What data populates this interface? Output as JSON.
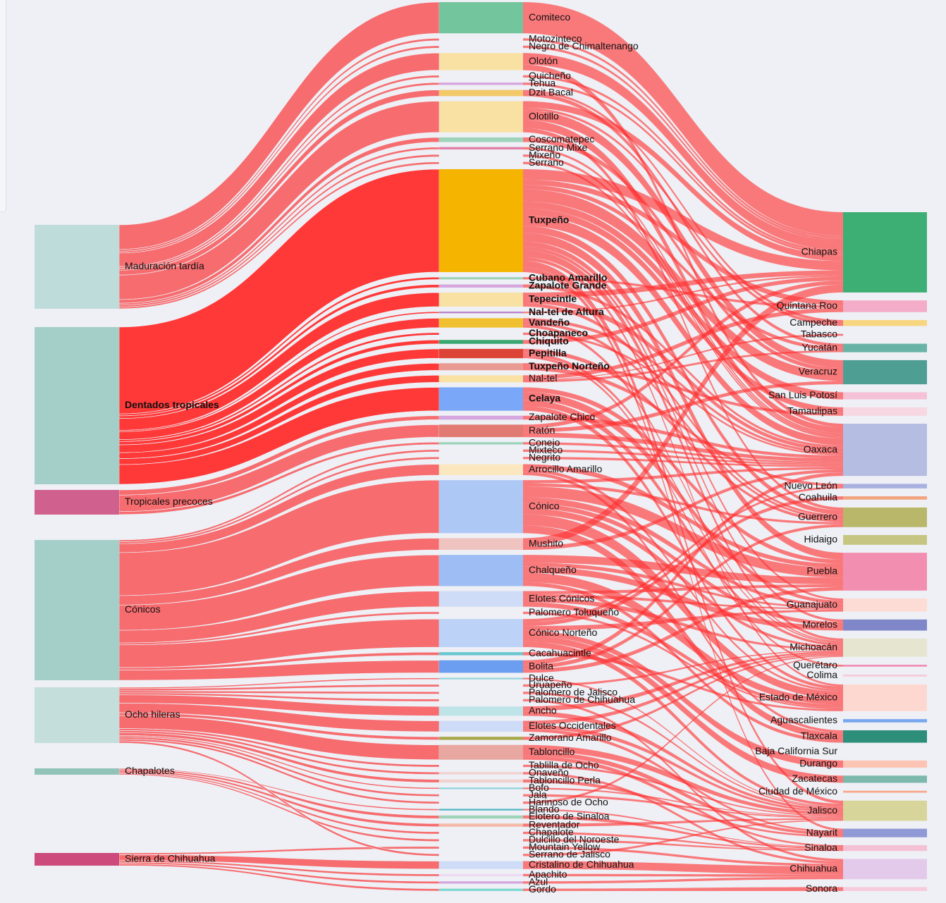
{
  "diagram": {
    "type": "sankey",
    "colors": {
      "group_link": "#f56467",
      "group_link_dentados": "#ff3434",
      "state_link": "#ff3030",
      "background": "#eef0f5"
    },
    "groups": [
      {
        "label": "Maduración tardía",
        "bold": false,
        "color": "#bedcd9"
      },
      {
        "label": "Dentados tropicales",
        "bold": true,
        "color": "#a4cfc9"
      },
      {
        "label": "Tropicales precoces",
        "bold": false,
        "color": "#d0618e"
      },
      {
        "label": "Cónicos",
        "bold": false,
        "color": "#a4cfc9"
      },
      {
        "label": "Ocho hileras",
        "bold": false,
        "color": "#c4dedb"
      },
      {
        "label": "Chapalotes",
        "bold": false,
        "color": "#92c3b9"
      },
      {
        "label": "Sierra de Chihuahua",
        "bold": false,
        "color": "#cc4a7c"
      }
    ],
    "races": [
      {
        "label": "Comiteco",
        "group": 0,
        "bold": false,
        "color": "#73c59d"
      },
      {
        "label": "Motozinteco",
        "group": 0,
        "bold": false,
        "color": "#eef0f5"
      },
      {
        "label": "Negro de Chimaltenango",
        "group": 0,
        "bold": false,
        "color": "#eef0f5"
      },
      {
        "label": "Olotón",
        "group": 0,
        "bold": false,
        "color": "#f8e1a3"
      },
      {
        "label": "Quicheño",
        "group": 0,
        "bold": false,
        "color": "#eef0f5"
      },
      {
        "label": "Tehua",
        "group": 0,
        "bold": false,
        "color": "#d6a6df"
      },
      {
        "label": "Dzit Bacal",
        "group": 0,
        "bold": false,
        "color": "#f3c96a"
      },
      {
        "label": "Olotillo",
        "group": 0,
        "bold": false,
        "color": "#f8e1a3"
      },
      {
        "label": "Coscomatepec",
        "group": 0,
        "bold": false,
        "color": "#9fd4bb"
      },
      {
        "label": "Serrano Mixe",
        "group": 0,
        "bold": false,
        "color": "#e07fa8"
      },
      {
        "label": "Mixeño",
        "group": 0,
        "bold": false,
        "color": "#eef0f5"
      },
      {
        "label": "Serrano",
        "group": 0,
        "bold": false,
        "color": "#eef0f5"
      },
      {
        "label": "Tuxpeño",
        "group": 1,
        "bold": true,
        "color": "#f4b400"
      },
      {
        "label": "Cubano Amarillo",
        "group": 1,
        "bold": true,
        "color": "#9fd4bb"
      },
      {
        "label": "Zapalote Grande",
        "group": 1,
        "bold": true,
        "color": "#d6a6df"
      },
      {
        "label": "Tepecintle",
        "group": 1,
        "bold": true,
        "color": "#f8e1a3"
      },
      {
        "label": "Nal-tel de Altura",
        "group": 1,
        "bold": true,
        "color": "#b77fc8"
      },
      {
        "label": "Vandeño",
        "group": 1,
        "bold": true,
        "color": "#f0c030"
      },
      {
        "label": "Choapaneco",
        "group": 1,
        "bold": true,
        "color": "#eef0f5"
      },
      {
        "label": "Chiquito",
        "group": 1,
        "bold": true,
        "color": "#3aa870"
      },
      {
        "label": "Pepitilla",
        "group": 1,
        "bold": true,
        "color": "#db4437"
      },
      {
        "label": "Tuxpeño Norteño",
        "group": 1,
        "bold": true,
        "color": "#e99a92"
      },
      {
        "label": "Nal-tel",
        "group": 1,
        "bold": false,
        "color": "#f8e1a3"
      },
      {
        "label": "Celaya",
        "group": 1,
        "bold": true,
        "color": "#7ba7f9"
      },
      {
        "label": "Zapalote Chico",
        "group": 2,
        "bold": false,
        "color": "#d6a6df"
      },
      {
        "label": "Ratón",
        "group": 2,
        "bold": false,
        "color": "#e07a72"
      },
      {
        "label": "Conejo",
        "group": 2,
        "bold": false,
        "color": "#9fd4bb"
      },
      {
        "label": "Mixteco",
        "group": 3,
        "bold": false,
        "color": "#eef0f5"
      },
      {
        "label": "Negrito",
        "group": 3,
        "bold": false,
        "color": "#eef0f5"
      },
      {
        "label": "Arrocillo Amarillo",
        "group": 3,
        "bold": false,
        "color": "#fbe8c0"
      },
      {
        "label": "Cónico",
        "group": 3,
        "bold": false,
        "color": "#aec8f6"
      },
      {
        "label": "Mushito",
        "group": 3,
        "bold": false,
        "color": "#efc4c0"
      },
      {
        "label": "Chalqueño",
        "group": 3,
        "bold": false,
        "color": "#9dbdf4"
      },
      {
        "label": "Elotes Cónicos",
        "group": 3,
        "bold": false,
        "color": "#cfdcf7"
      },
      {
        "label": "Palomero Toluqueño",
        "group": 3,
        "bold": false,
        "color": "#eef0f5"
      },
      {
        "label": "Cónico Norteño",
        "group": 3,
        "bold": false,
        "color": "#bcd2f7"
      },
      {
        "label": "Cacahuacintle",
        "group": 3,
        "bold": false,
        "color": "#6ac7cf"
      },
      {
        "label": "Bolita",
        "group": 3,
        "bold": false,
        "color": "#6b9ef0"
      },
      {
        "label": "Dulce",
        "group": 4,
        "bold": false,
        "color": "#8fd3dc"
      },
      {
        "label": "Uruapeño",
        "group": 4,
        "bold": false,
        "color": "#eef0f5"
      },
      {
        "label": "Palomero de Jalisco",
        "group": 4,
        "bold": false,
        "color": "#eef0f5"
      },
      {
        "label": "Palomero de Chihuahua",
        "group": 4,
        "bold": false,
        "color": "#eef0f5"
      },
      {
        "label": "Ancho",
        "group": 4,
        "bold": false,
        "color": "#bfe4e8"
      },
      {
        "label": "Elotes Occidentales",
        "group": 4,
        "bold": false,
        "color": "#cfdcf7"
      },
      {
        "label": "Zamorano Amarillo",
        "group": 4,
        "bold": false,
        "color": "#a8a84a"
      },
      {
        "label": "Tabloncillo",
        "group": 4,
        "bold": false,
        "color": "#e8a7a0"
      },
      {
        "label": "Tablilla de Ocho",
        "group": 4,
        "bold": false,
        "color": "#eef0f5"
      },
      {
        "label": "Onaveño",
        "group": 4,
        "bold": false,
        "color": "#f1d2cf"
      },
      {
        "label": "Tabloncillo Perla",
        "group": 4,
        "bold": false,
        "color": "#f1d2cf"
      },
      {
        "label": "Bofo",
        "group": 4,
        "bold": false,
        "color": "#8fd3dc"
      },
      {
        "label": "Jala",
        "group": 4,
        "bold": false,
        "color": "#eef0f5"
      },
      {
        "label": "Harinoso de Ocho",
        "group": 4,
        "bold": false,
        "color": "#eef0f5"
      },
      {
        "label": "Blando",
        "group": 5,
        "bold": false,
        "color": "#4db6c4"
      },
      {
        "label": "Elotero de Sinaloa",
        "group": 5,
        "bold": false,
        "color": "#9fd4bb"
      },
      {
        "label": "Reventador",
        "group": 5,
        "bold": false,
        "color": "#f5b9a8"
      },
      {
        "label": "Chapalote",
        "group": 5,
        "bold": false,
        "color": "#eef0f5"
      },
      {
        "label": "Dulcillo del Noroeste",
        "group": 5,
        "bold": false,
        "color": "#eef0f5"
      },
      {
        "label": "Mountain Yellow",
        "group": 6,
        "bold": false,
        "color": "#eef0f5"
      },
      {
        "label": "Serrano de Jalisco",
        "group": 4,
        "bold": false,
        "color": "#eef0f5"
      },
      {
        "label": "Cristalino de Chihuahua",
        "group": 6,
        "bold": false,
        "color": "#cfdcf7"
      },
      {
        "label": "Apachito",
        "group": 6,
        "bold": false,
        "color": "#eed9f2"
      },
      {
        "label": "Azul",
        "group": 6,
        "bold": false,
        "color": "#d6a6df"
      },
      {
        "label": "Gordo",
        "group": 6,
        "bold": false,
        "color": "#7fd8cf"
      }
    ],
    "states": [
      {
        "label": "Chiapas",
        "color": "#3dae74"
      },
      {
        "label": "Quintana Roo",
        "color": "#f3adc8"
      },
      {
        "label": "Campeche",
        "color": "#f7d67f"
      },
      {
        "label": "Tabasco",
        "color": "#eef0f5"
      },
      {
        "label": "Yucatán",
        "color": "#69b3a6"
      },
      {
        "label": "Veracruz",
        "color": "#4f9e94"
      },
      {
        "label": "San Luis Potosí",
        "color": "#f5c1d5"
      },
      {
        "label": "Tamaulipas",
        "color": "#f6d7e2"
      },
      {
        "label": "Oaxaca",
        "color": "#b5bde2"
      },
      {
        "label": "Nuevo León",
        "color": "#a9b1df"
      },
      {
        "label": "Coahuila",
        "color": "#f2a27d"
      },
      {
        "label": "Guerrero",
        "color": "#b9b76a"
      },
      {
        "label": "Hidaigo",
        "color": "#c6c682"
      },
      {
        "label": "Puebla",
        "color": "#f28fb1"
      },
      {
        "label": "Guanajuato",
        "color": "#fcdcd4"
      },
      {
        "label": "Morelos",
        "color": "#7f87c9"
      },
      {
        "label": "Michoacán",
        "color": "#e6e6d0"
      },
      {
        "label": "Querétaro",
        "color": "#f090b8"
      },
      {
        "label": "Colima",
        "color": "#f7cbd8"
      },
      {
        "label": "Estado de México",
        "color": "#fdd8d0"
      },
      {
        "label": "Aguascalientes",
        "color": "#78a6ef"
      },
      {
        "label": "Tlaxcala",
        "color": "#2d8e7a"
      },
      {
        "label": "Baja California Sur",
        "color": "#eef0f5"
      },
      {
        "label": "Durango",
        "color": "#fdc4b4"
      },
      {
        "label": "Zacatecas",
        "color": "#7cb8ac"
      },
      {
        "label": "Ciudad de México",
        "color": "#f7a78b"
      },
      {
        "label": "Jalisco",
        "color": "#d8d59a"
      },
      {
        "label": "Nayarit",
        "color": "#8e99d6"
      },
      {
        "label": "Sinaloa",
        "color": "#f4c1d4"
      },
      {
        "label": "Chihuahua",
        "color": "#e3c9ea"
      },
      {
        "label": "Sonora",
        "color": "#f6cbdb"
      }
    ],
    "values": {
      "races": [
        40,
        3,
        3,
        22,
        3,
        3,
        8,
        40,
        6,
        3,
        3,
        3,
        132,
        3,
        4,
        18,
        2,
        12,
        3,
        5,
        12,
        9,
        9,
        30,
        5,
        16,
        3,
        3,
        3,
        14,
        68,
        15,
        40,
        20,
        3,
        36,
        4,
        16,
        2,
        3,
        3,
        3,
        12,
        14,
        4,
        19,
        3,
        3,
        4,
        2,
        3,
        3,
        2,
        4,
        4,
        3,
        3,
        3,
        3,
        10,
        3,
        3,
        3
      ],
      "states": [
        123,
        18,
        9,
        3,
        13,
        37,
        11,
        13,
        80,
        7,
        5,
        30,
        15,
        58,
        20,
        17,
        28,
        3,
        3,
        41,
        5,
        19,
        3,
        11,
        11,
        3,
        31,
        13,
        9,
        31,
        6
      ]
    },
    "state_flows": [
      [
        0,
        0,
        30
      ],
      [
        1,
        0,
        3
      ],
      [
        2,
        0,
        3
      ],
      [
        3,
        0,
        12
      ],
      [
        3,
        8,
        6
      ],
      [
        4,
        0,
        3
      ],
      [
        5,
        0,
        3
      ],
      [
        6,
        4,
        5
      ],
      [
        6,
        2,
        3
      ],
      [
        7,
        5,
        12
      ],
      [
        7,
        8,
        10
      ],
      [
        7,
        0,
        8
      ],
      [
        7,
        11,
        5
      ],
      [
        7,
        2,
        3
      ],
      [
        8,
        5,
        6
      ],
      [
        9,
        8,
        3
      ],
      [
        10,
        8,
        3
      ],
      [
        11,
        8,
        3
      ],
      [
        12,
        5,
        14
      ],
      [
        12,
        0,
        12
      ],
      [
        12,
        8,
        12
      ],
      [
        12,
        11,
        8
      ],
      [
        12,
        13,
        10
      ],
      [
        12,
        14,
        6
      ],
      [
        12,
        6,
        8
      ],
      [
        12,
        7,
        8
      ],
      [
        12,
        1,
        6
      ],
      [
        12,
        4,
        5
      ],
      [
        12,
        16,
        8
      ],
      [
        12,
        26,
        8
      ],
      [
        12,
        27,
        5
      ],
      [
        12,
        19,
        4
      ],
      [
        12,
        15,
        4
      ],
      [
        13,
        1,
        3
      ],
      [
        14,
        8,
        4
      ],
      [
        15,
        0,
        6
      ],
      [
        15,
        8,
        6
      ],
      [
        15,
        11,
        4
      ],
      [
        16,
        0,
        2
      ],
      [
        17,
        8,
        4
      ],
      [
        17,
        11,
        4
      ],
      [
        17,
        16,
        4
      ],
      [
        18,
        8,
        3
      ],
      [
        19,
        0,
        5
      ],
      [
        20,
        11,
        5
      ],
      [
        20,
        16,
        4
      ],
      [
        20,
        17,
        3
      ],
      [
        21,
        7,
        4
      ],
      [
        21,
        9,
        5
      ],
      [
        22,
        1,
        5
      ],
      [
        22,
        4,
        3
      ],
      [
        22,
        3,
        1
      ],
      [
        23,
        14,
        10
      ],
      [
        23,
        16,
        8
      ],
      [
        23,
        19,
        6
      ],
      [
        23,
        13,
        6
      ],
      [
        24,
        8,
        5
      ],
      [
        25,
        8,
        6
      ],
      [
        25,
        5,
        5
      ],
      [
        25,
        0,
        5
      ],
      [
        26,
        8,
        3
      ],
      [
        27,
        8,
        3
      ],
      [
        28,
        8,
        3
      ],
      [
        29,
        13,
        6
      ],
      [
        29,
        19,
        4
      ],
      [
        29,
        21,
        4
      ],
      [
        30,
        19,
        14
      ],
      [
        30,
        13,
        14
      ],
      [
        30,
        21,
        10
      ],
      [
        30,
        14,
        8
      ],
      [
        30,
        16,
        8
      ],
      [
        30,
        15,
        6
      ],
      [
        30,
        8,
        4
      ],
      [
        30,
        11,
        4
      ],
      [
        31,
        0,
        10
      ],
      [
        31,
        8,
        5
      ],
      [
        32,
        19,
        12
      ],
      [
        32,
        13,
        10
      ],
      [
        32,
        15,
        8
      ],
      [
        32,
        21,
        5
      ],
      [
        32,
        14,
        5
      ],
      [
        33,
        16,
        6
      ],
      [
        33,
        19,
        6
      ],
      [
        33,
        14,
        4
      ],
      [
        33,
        13,
        4
      ],
      [
        34,
        19,
        3
      ],
      [
        35,
        14,
        6
      ],
      [
        35,
        23,
        6
      ],
      [
        35,
        24,
        8
      ],
      [
        35,
        9,
        4
      ],
      [
        35,
        10,
        5
      ],
      [
        35,
        26,
        7
      ],
      [
        36,
        19,
        4
      ],
      [
        37,
        8,
        6
      ],
      [
        37,
        13,
        5
      ],
      [
        37,
        11,
        5
      ],
      [
        38,
        26,
        2
      ],
      [
        39,
        16,
        3
      ],
      [
        40,
        26,
        3
      ],
      [
        41,
        29,
        3
      ],
      [
        42,
        26,
        6
      ],
      [
        42,
        16,
        6
      ],
      [
        43,
        26,
        5
      ],
      [
        43,
        16,
        5
      ],
      [
        43,
        27,
        4
      ],
      [
        44,
        16,
        4
      ],
      [
        45,
        26,
        8
      ],
      [
        45,
        27,
        6
      ],
      [
        45,
        28,
        5
      ],
      [
        46,
        26,
        3
      ],
      [
        47,
        29,
        3
      ],
      [
        48,
        27,
        4
      ],
      [
        49,
        26,
        2
      ],
      [
        50,
        26,
        3
      ],
      [
        51,
        16,
        3
      ],
      [
        52,
        28,
        2
      ],
      [
        53,
        28,
        4
      ],
      [
        54,
        26,
        4
      ],
      [
        55,
        28,
        3
      ],
      [
        56,
        28,
        3
      ],
      [
        57,
        29,
        3
      ],
      [
        58,
        26,
        3
      ],
      [
        59,
        29,
        10
      ],
      [
        60,
        29,
        3
      ],
      [
        61,
        29,
        3
      ],
      [
        62,
        30,
        3
      ]
    ]
  }
}
